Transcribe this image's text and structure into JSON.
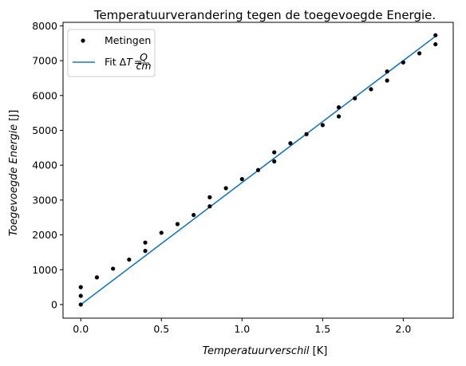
{
  "chart_data": {
    "type": "scatter",
    "title": "Temperatuurverandering tegen de toegevoegde Energie.",
    "xlabel_italic": "Temperatuurverschil",
    "xlabel_unit": " [K]",
    "ylabel_italic": "Toegevoegde Energie",
    "ylabel_unit": " [J]",
    "xlim": [
      -0.11,
      2.31
    ],
    "ylim": [
      -390,
      8100
    ],
    "x_ticks": [
      0.0,
      0.5,
      1.0,
      1.5,
      2.0
    ],
    "x_tick_labels": [
      "0.0",
      "0.5",
      "1.0",
      "1.5",
      "2.0"
    ],
    "y_ticks": [
      0,
      1000,
      2000,
      3000,
      4000,
      5000,
      6000,
      7000,
      8000
    ],
    "y_tick_labels": [
      "0",
      "1000",
      "2000",
      "3000",
      "4000",
      "5000",
      "6000",
      "7000",
      "8000"
    ],
    "legend_position": "top-left",
    "series": [
      {
        "name": "Metingen",
        "kind": "points",
        "color": "#000000",
        "points": [
          [
            0.0,
            500
          ],
          [
            0.0,
            250
          ],
          [
            0.0,
            0
          ],
          [
            0.1,
            780
          ],
          [
            0.2,
            1030
          ],
          [
            0.3,
            1290
          ],
          [
            0.4,
            1780
          ],
          [
            0.4,
            1540
          ],
          [
            0.5,
            2060
          ],
          [
            0.6,
            2310
          ],
          [
            0.7,
            2570
          ],
          [
            0.8,
            3080
          ],
          [
            0.8,
            2820
          ],
          [
            0.9,
            3340
          ],
          [
            1.0,
            3600
          ],
          [
            1.1,
            3860
          ],
          [
            1.2,
            4370
          ],
          [
            1.2,
            4110
          ],
          [
            1.3,
            4630
          ],
          [
            1.4,
            4890
          ],
          [
            1.5,
            5150
          ],
          [
            1.6,
            5660
          ],
          [
            1.6,
            5400
          ],
          [
            1.7,
            5920
          ],
          [
            1.8,
            6180
          ],
          [
            1.9,
            6690
          ],
          [
            1.9,
            6430
          ],
          [
            2.0,
            6950
          ],
          [
            2.1,
            7210
          ],
          [
            2.2,
            7730
          ],
          [
            2.2,
            7470
          ]
        ]
      },
      {
        "name": "Fit ΔT = Q/cm",
        "label_prefix": "Fit Δ",
        "label_var": "T",
        "label_num": "Q",
        "label_den": "cm",
        "kind": "line",
        "color": "#1f77b4",
        "x": [
          0.0,
          2.2
        ],
        "y": [
          0,
          7700
        ]
      }
    ]
  }
}
